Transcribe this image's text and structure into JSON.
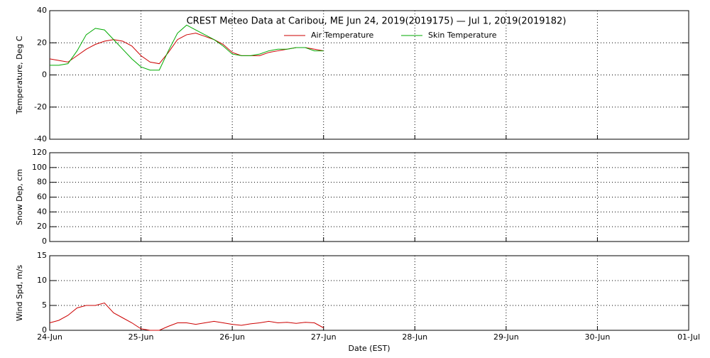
{
  "chart_data": [
    {
      "type": "line",
      "title": "CREST Meteo Data at Caribou, ME   Jun 24, 2019(2019175) — Jul  1, 2019(2019182)",
      "ylabel": "Temperature, Deg C",
      "legend": "top",
      "grid": true,
      "x": [
        0,
        0.1,
        0.2,
        0.3,
        0.4,
        0.5,
        0.6,
        0.7,
        0.8,
        0.9,
        1.0,
        1.1,
        1.2,
        1.3,
        1.4,
        1.5,
        1.6,
        1.7,
        1.8,
        1.9,
        2.0,
        2.1,
        2.2,
        2.3,
        2.4,
        2.5,
        2.6,
        2.7,
        2.8,
        2.9,
        3.0
      ],
      "xlim": [
        0,
        7
      ],
      "xticks": [
        0,
        1,
        2,
        3,
        4,
        5,
        6,
        7
      ],
      "ylim": [
        -40,
        40
      ],
      "yticks": [
        -40,
        -20,
        0,
        20,
        40
      ],
      "series": [
        {
          "name": "Air Temperature",
          "color": "#cc0000",
          "values": [
            10,
            9,
            8,
            12,
            16,
            19,
            21,
            22,
            21,
            18,
            12,
            8,
            7,
            14,
            22,
            25,
            26,
            24,
            22,
            19,
            14,
            12,
            12,
            12,
            14,
            15,
            16,
            17,
            17,
            16,
            15
          ]
        },
        {
          "name": "Skin Temperature",
          "color": "#00aa00",
          "values": [
            6,
            6,
            7,
            15,
            25,
            29,
            28,
            22,
            16,
            10,
            5,
            3,
            3,
            15,
            26,
            31,
            28,
            25,
            22,
            18,
            13,
            12,
            12,
            13,
            15,
            16,
            16,
            17,
            17,
            15,
            15
          ]
        }
      ]
    },
    {
      "type": "line",
      "ylabel": "Snow Dep, cm",
      "grid": true,
      "x": [],
      "xlim": [
        0,
        7
      ],
      "xticks": [
        0,
        1,
        2,
        3,
        4,
        5,
        6,
        7
      ],
      "ylim": [
        0,
        120
      ],
      "yticks": [
        0,
        20,
        40,
        60,
        80,
        100,
        120
      ],
      "series": []
    },
    {
      "type": "line",
      "ylabel": "Wind Spd, m/s",
      "xlabel": "Date (EST)",
      "grid": true,
      "x": [
        0,
        0.1,
        0.2,
        0.3,
        0.4,
        0.5,
        0.6,
        0.7,
        0.8,
        0.9,
        1.0,
        1.1,
        1.2,
        1.3,
        1.4,
        1.5,
        1.6,
        1.7,
        1.8,
        1.9,
        2.0,
        2.1,
        2.2,
        2.3,
        2.4,
        2.5,
        2.6,
        2.7,
        2.8,
        2.9,
        3.0
      ],
      "xlim": [
        0,
        7
      ],
      "xticks": [
        {
          "value": 0,
          "label": "24-Jun"
        },
        {
          "value": 1,
          "label": "25-Jun"
        },
        {
          "value": 2,
          "label": "26-Jun"
        },
        {
          "value": 3,
          "label": "27-Jun"
        },
        {
          "value": 4,
          "label": "28-Jun"
        },
        {
          "value": 5,
          "label": "29-Jun"
        },
        {
          "value": 6,
          "label": "30-Jun"
        },
        {
          "value": 7,
          "label": "01-Jul"
        }
      ],
      "ylim": [
        0,
        15
      ],
      "yticks": [
        0,
        5,
        10,
        15
      ],
      "series": [
        {
          "name": "Wind Speed",
          "color": "#cc0000",
          "values": [
            1.5,
            2,
            3,
            4.5,
            5,
            5,
            5.5,
            3.5,
            2.5,
            1.5,
            0.3,
            0,
            0,
            0.8,
            1.5,
            1.5,
            1.2,
            1.5,
            1.8,
            1.5,
            1.2,
            1.0,
            1.3,
            1.5,
            1.8,
            1.5,
            1.6,
            1.4,
            1.6,
            1.5,
            0.5
          ]
        }
      ]
    }
  ]
}
